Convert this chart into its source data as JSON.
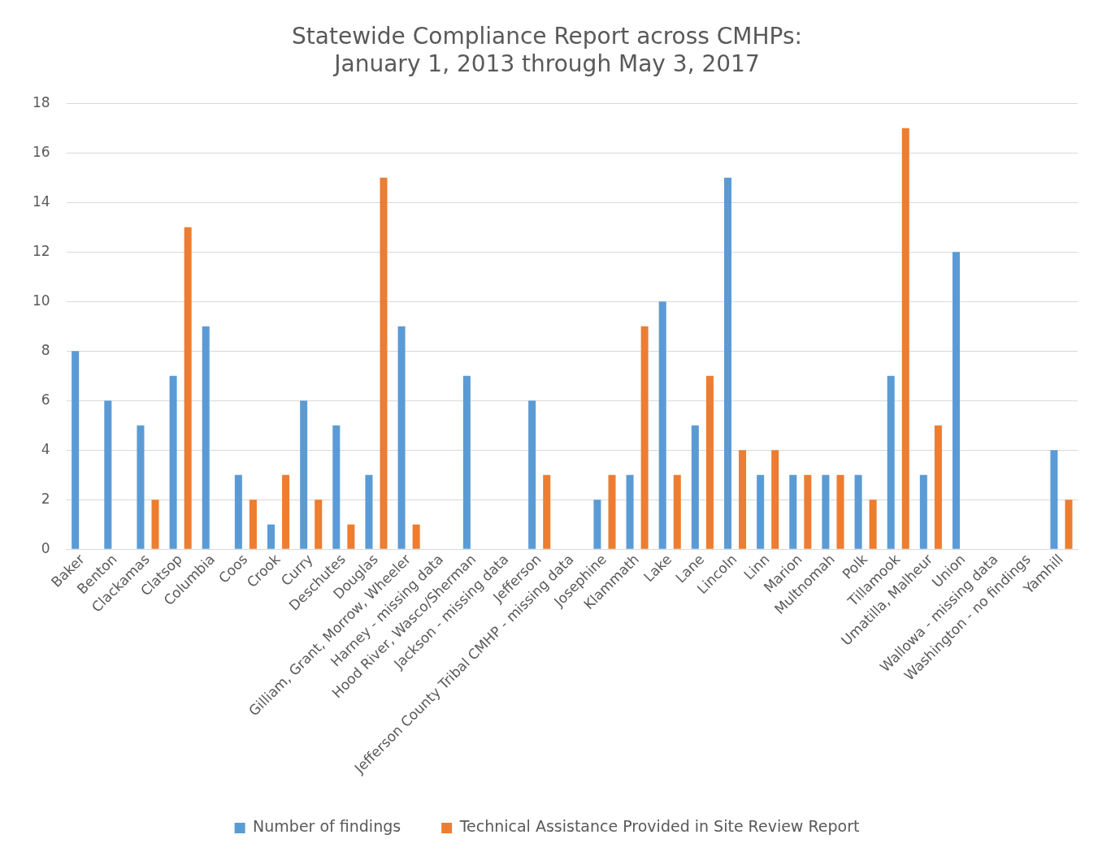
{
  "chart_data": {
    "type": "bar",
    "title": [
      "Statewide Compliance Report across CMHPs:",
      "January 1, 2013 through May 3, 2017"
    ],
    "categories": [
      "Baker",
      "Benton",
      "Clackamas",
      "Clatsop",
      "Columbia",
      "Coos",
      "Crook",
      "Curry",
      "Deschutes",
      "Douglas",
      "Gilliam, Grant, Morrow, Wheeler",
      "Harney - missing data",
      "Hood River, Wasco/Sherman",
      "Jackson - missing data",
      "Jefferson",
      "Jefferson County Tribal CMHP - missing data",
      "Josephine",
      "Klammath",
      "Lake",
      "Lane",
      "Lincoln",
      "Linn",
      "Marion",
      "Multnomah",
      "Polk",
      "Tillamook",
      "Umatilla, Malheur",
      "Union",
      "Wallowa - missing data",
      "Washington - no findings",
      "Yamhill"
    ],
    "series": [
      {
        "name": "Number of findings",
        "color": "#5b9bd5",
        "values": [
          8,
          6,
          5,
          7,
          9,
          3,
          1,
          6,
          5,
          3,
          9,
          null,
          7,
          null,
          6,
          null,
          2,
          3,
          10,
          5,
          15,
          3,
          3,
          3,
          3,
          7,
          3,
          12,
          null,
          null,
          4
        ]
      },
      {
        "name": "Technical Assistance Provided in Site Review Report",
        "color": "#ed7d31",
        "values": [
          null,
          null,
          2,
          13,
          null,
          2,
          3,
          2,
          1,
          15,
          1,
          null,
          null,
          null,
          3,
          null,
          3,
          9,
          3,
          7,
          4,
          4,
          3,
          3,
          2,
          17,
          5,
          null,
          null,
          null,
          2
        ]
      }
    ],
    "ylim": [
      0,
      18
    ],
    "yticks": [
      0,
      2,
      4,
      6,
      8,
      10,
      12,
      14,
      16,
      18
    ],
    "grid": "y",
    "legend": "bottom"
  }
}
